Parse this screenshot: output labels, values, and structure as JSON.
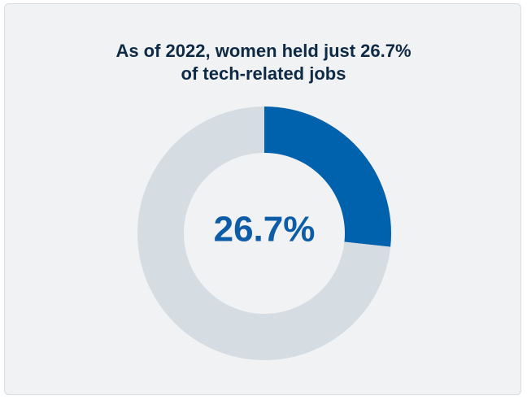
{
  "title_lines": [
    "As of 2022, women held just 26.7%",
    "of tech-related jobs"
  ],
  "chart_data": {
    "type": "pie",
    "variant": "donut",
    "title": "As of 2022, women held just 26.7% of tech-related jobs",
    "slices": [
      {
        "name": "",
        "value": 26.7,
        "color": "#0061ad"
      },
      {
        "name": "",
        "value": 73.3,
        "color": "#d5dde2"
      }
    ],
    "center_label": "26.7%",
    "center_label_color": "#0d5ca8",
    "start_angle": "12 o'clock, clockwise",
    "legend": "none"
  },
  "colors": {
    "background": "#f0f2f4",
    "title": "#0e2a44",
    "highlight": "#0061ad",
    "remainder": "#d5dde2"
  }
}
